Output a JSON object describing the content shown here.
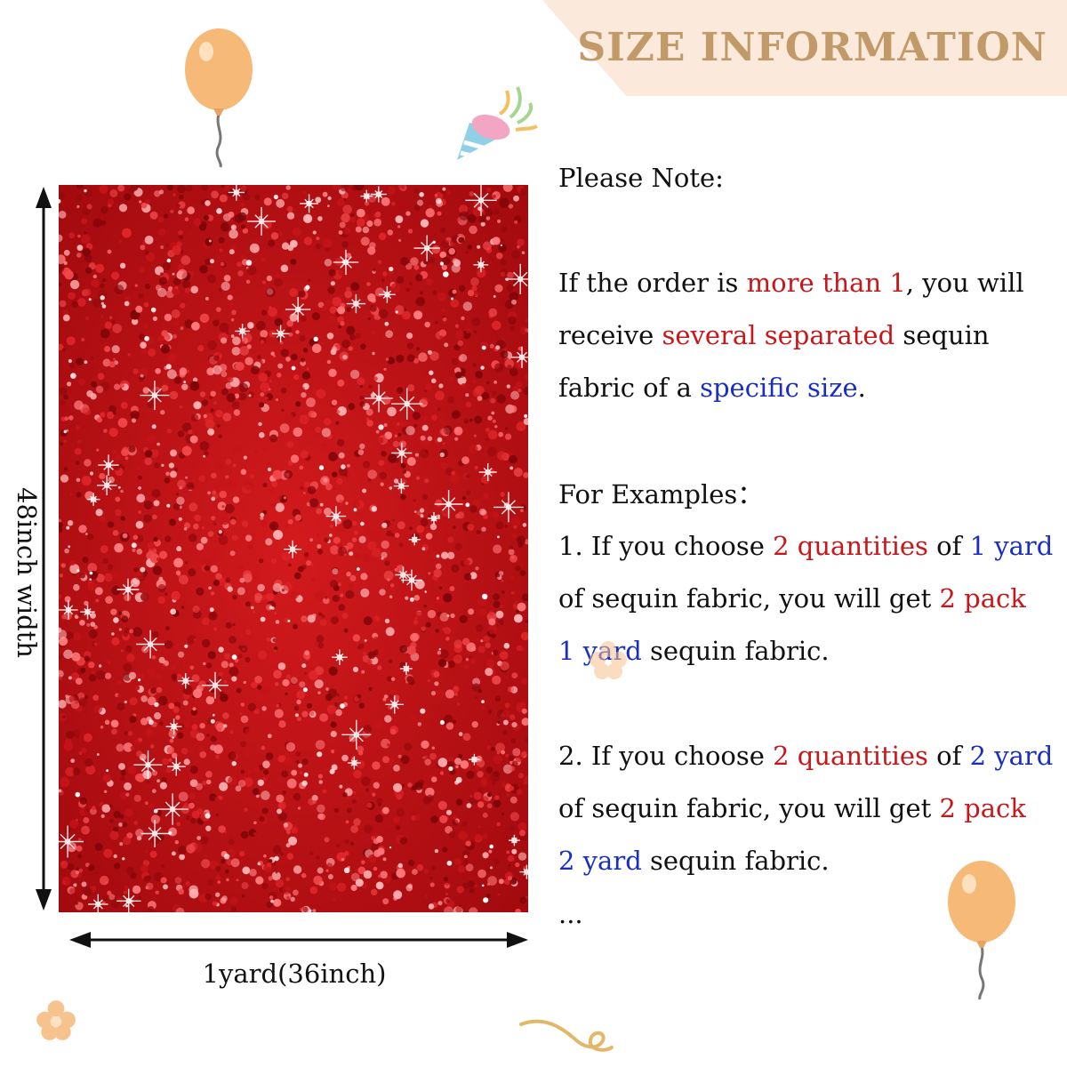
{
  "header": {
    "title": "SIZE INFORMATION"
  },
  "dimensions": {
    "height_label": "48inch width",
    "width_label": "1yard(36inch)"
  },
  "note": {
    "heading": "Please Note:",
    "p1_a": "If the order is ",
    "p1_b": "more than 1",
    "p1_c": ", you will",
    "p2_a": "receive ",
    "p2_b": "several separated",
    "p2_c": " sequin",
    "p3_a": "fabric of a ",
    "p3_b": "specific size",
    "p3_c": "."
  },
  "examples": {
    "heading": "For Examples：",
    "e1_l1_a": "1. If you choose ",
    "e1_l1_b": "2 quantities",
    "e1_l1_c": " of ",
    "e1_l1_d": "1 yard",
    "e1_l2_a": "of sequin fabric, you will get ",
    "e1_l2_b": "2 pack",
    "e1_l3_a": "1 yard",
    "e1_l3_b": " sequin fabric.",
    "e2_l1_a": "2. If you choose ",
    "e2_l1_b": "2 quantities",
    "e2_l1_c": " of ",
    "e2_l1_d": "2 yard",
    "e2_l2_a": "of sequin fabric, you will get ",
    "e2_l2_b": "2 pack",
    "e2_l3_a": "2 yard",
    "e2_l3_b": " sequin fabric.",
    "ellipsis": "..."
  },
  "colors": {
    "banner_bg": "#fbeadb",
    "banner_text": "#c29a6a",
    "fabric_red": "#b80d12",
    "highlight_red": "#c8171a",
    "highlight_blue": "#1a2ec0"
  },
  "icons": [
    "balloon-icon",
    "party-hat-icon",
    "flower-icon",
    "ribbon-icon"
  ]
}
